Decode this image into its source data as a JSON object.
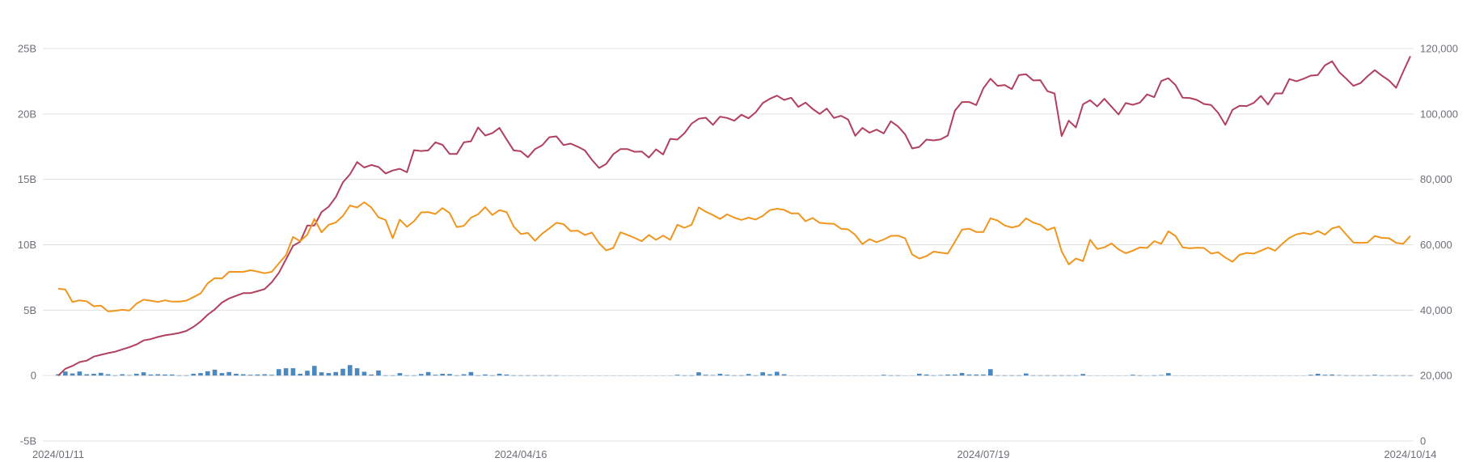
{
  "chart_data": {
    "type": "line+bar",
    "title": "",
    "xlabel": "",
    "ylabel_left": "",
    "ylabel_right": "",
    "grid": true,
    "legend": "none",
    "colors": {
      "line_red": "#b0405e",
      "line_orange": "#f0961e",
      "bars": "#4a88bd",
      "grid": "#e0e0e0",
      "tick_text": "#6e7079"
    },
    "y_left": {
      "range": [
        -5,
        25
      ],
      "unit": "B",
      "tick_labels": [
        "-5B",
        "0",
        "5B",
        "10B",
        "15B",
        "20B",
        "25B"
      ],
      "tick_values": [
        -5,
        0,
        5,
        10,
        15,
        20,
        25
      ]
    },
    "y_right": {
      "range": [
        0,
        120000
      ],
      "tick_labels": [
        "0",
        "20,000",
        "40,000",
        "60,000",
        "80,000",
        "100,000",
        "120,000"
      ],
      "tick_values": [
        0,
        20000,
        40000,
        60000,
        80000,
        100000,
        120000
      ]
    },
    "x_tick_labels": [
      "2024/01/11",
      "2024/04/16",
      "2024/07/19",
      "2024/10/14"
    ],
    "x": [
      "2024/01/11",
      "2024/01/12",
      "2024/01/16",
      "2024/01/17",
      "2024/01/18",
      "2024/01/19",
      "2024/01/22",
      "2024/01/23",
      "2024/01/24",
      "2024/01/25",
      "2024/01/26",
      "2024/01/29",
      "2024/01/30",
      "2024/01/31",
      "2024/02/01",
      "2024/02/02",
      "2024/02/05",
      "2024/02/06",
      "2024/02/07",
      "2024/02/08",
      "2024/02/09",
      "2024/02/12",
      "2024/02/13",
      "2024/02/14",
      "2024/02/15",
      "2024/02/16",
      "2024/02/20",
      "2024/02/21",
      "2024/02/22",
      "2024/02/23",
      "2024/02/26",
      "2024/02/27",
      "2024/02/28",
      "2024/02/29",
      "2024/03/01",
      "2024/03/04",
      "2024/03/05",
      "2024/03/06",
      "2024/03/07",
      "2024/03/08",
      "2024/03/11",
      "2024/03/12",
      "2024/03/13",
      "2024/03/14",
      "2024/03/15",
      "2024/03/18",
      "2024/03/19",
      "2024/03/20",
      "2024/03/21",
      "2024/03/22",
      "2024/03/25",
      "2024/03/26",
      "2024/03/27",
      "2024/03/28",
      "2024/04/01",
      "2024/04/02",
      "2024/04/03",
      "2024/04/04",
      "2024/04/05",
      "2024/04/08",
      "2024/04/09",
      "2024/04/10",
      "2024/04/11",
      "2024/04/12",
      "2024/04/15",
      "2024/04/16",
      "2024/04/17",
      "2024/04/18",
      "2024/04/19",
      "2024/04/22",
      "2024/04/23",
      "2024/04/24",
      "2024/04/25",
      "2024/04/26",
      "2024/04/29",
      "2024/04/30",
      "2024/05/01",
      "2024/05/02",
      "2024/05/03",
      "2024/05/06",
      "2024/05/07",
      "2024/05/08",
      "2024/05/09",
      "2024/05/10",
      "2024/05/13",
      "2024/05/14",
      "2024/05/15",
      "2024/05/16",
      "2024/05/17",
      "2024/05/20",
      "2024/05/21",
      "2024/05/22",
      "2024/05/23",
      "2024/05/24",
      "2024/05/28",
      "2024/05/29",
      "2024/05/30",
      "2024/05/31",
      "2024/06/03",
      "2024/06/04",
      "2024/06/05",
      "2024/06/06",
      "2024/06/07",
      "2024/06/10",
      "2024/06/11",
      "2024/06/12",
      "2024/06/13",
      "2024/06/14",
      "2024/06/17",
      "2024/06/18",
      "2024/06/20",
      "2024/06/21",
      "2024/06/24",
      "2024/06/25",
      "2024/06/26",
      "2024/06/27",
      "2024/06/28",
      "2024/07/01",
      "2024/07/02",
      "2024/07/03",
      "2024/07/05",
      "2024/07/08",
      "2024/07/09",
      "2024/07/10",
      "2024/07/11",
      "2024/07/12",
      "2024/07/15",
      "2024/07/16",
      "2024/07/17",
      "2024/07/18",
      "2024/07/19",
      "2024/07/22",
      "2024/07/23",
      "2024/07/24",
      "2024/07/25",
      "2024/07/26",
      "2024/07/29",
      "2024/07/30",
      "2024/07/31",
      "2024/08/01",
      "2024/08/02",
      "2024/08/05",
      "2024/08/06",
      "2024/08/07",
      "2024/08/08",
      "2024/08/09",
      "2024/08/12",
      "2024/08/13",
      "2024/08/14",
      "2024/08/15",
      "2024/08/16",
      "2024/08/19",
      "2024/08/20",
      "2024/08/21",
      "2024/08/22",
      "2024/08/23",
      "2024/08/26",
      "2024/08/27",
      "2024/08/28",
      "2024/08/29",
      "2024/08/30",
      "2024/09/03",
      "2024/09/04",
      "2024/09/05",
      "2024/09/06",
      "2024/09/09",
      "2024/09/10",
      "2024/09/11",
      "2024/09/12",
      "2024/09/13",
      "2024/09/16",
      "2024/09/17",
      "2024/09/18",
      "2024/09/19",
      "2024/09/20",
      "2024/09/23",
      "2024/09/24",
      "2024/09/25",
      "2024/09/26",
      "2024/09/27",
      "2024/09/30",
      "2024/10/01",
      "2024/10/02",
      "2024/10/03",
      "2024/10/04",
      "2024/10/07",
      "2024/10/08",
      "2024/10/09",
      "2024/10/10",
      "2024/10/11",
      "2024/10/14"
    ],
    "series": [
      {
        "type": "line",
        "axis": "left",
        "color": "#b0405e",
        "values": [
          0,
          0.52,
          0.74,
          1.03,
          1.14,
          1.45,
          1.59,
          1.72,
          1.82,
          2.0,
          2.17,
          2.38,
          2.69,
          2.79,
          2.95,
          3.08,
          3.16,
          3.26,
          3.41,
          3.72,
          4.13,
          4.65,
          5.06,
          5.58,
          5.89,
          6.1,
          6.3,
          6.3,
          6.45,
          6.61,
          7.13,
          7.85,
          8.88,
          9.92,
          10.23,
          11.47,
          11.47,
          12.5,
          12.91,
          13.64,
          14.77,
          15.39,
          16.32,
          15.91,
          16.1,
          15.95,
          15.45,
          15.68,
          15.81,
          15.54,
          17.23,
          17.17,
          17.21,
          17.83,
          17.64,
          16.94,
          16.94,
          17.83,
          17.91,
          18.97,
          18.35,
          18.53,
          18.93,
          18.06,
          17.21,
          17.15,
          16.69,
          17.31,
          17.6,
          18.22,
          18.29,
          17.62,
          17.73,
          17.5,
          17.21,
          16.49,
          15.87,
          16.18,
          16.92,
          17.31,
          17.31,
          17.11,
          17.13,
          16.67,
          17.29,
          16.9,
          18.1,
          18.04,
          18.53,
          19.26,
          19.63,
          19.71,
          19.17,
          19.79,
          19.69,
          19.48,
          19.94,
          19.67,
          20.12,
          20.83,
          21.16,
          21.4,
          21.07,
          21.24,
          20.54,
          20.87,
          20.39,
          20.0,
          20.41,
          19.69,
          19.86,
          19.57,
          18.33,
          18.93,
          18.57,
          18.8,
          18.51,
          19.44,
          19.05,
          18.45,
          17.36,
          17.48,
          18.04,
          17.98,
          18.06,
          18.35,
          20.25,
          20.91,
          20.91,
          20.68,
          21.96,
          22.69,
          22.15,
          22.21,
          21.9,
          22.98,
          23.04,
          22.56,
          22.58,
          21.74,
          21.57,
          18.31,
          19.48,
          18.97,
          20.74,
          21.05,
          20.58,
          21.16,
          20.56,
          19.96,
          20.83,
          20.7,
          20.87,
          21.49,
          21.28,
          22.52,
          22.73,
          22.21,
          21.24,
          21.22,
          21.07,
          20.76,
          20.68,
          20.08,
          19.17,
          20.31,
          20.62,
          20.6,
          20.85,
          21.38,
          20.72,
          21.57,
          21.57,
          22.67,
          22.5,
          22.69,
          22.93,
          22.98,
          23.72,
          24.03,
          23.2,
          22.69,
          22.15,
          22.36,
          22.89,
          23.35,
          22.93,
          22.56,
          22.0,
          23.24,
          24.42
        ]
      },
      {
        "type": "line",
        "axis": "right",
        "color": "#f0961e",
        "values": [
          46600,
          46300,
          42500,
          43000,
          42700,
          41200,
          41400,
          39600,
          39800,
          40100,
          39900,
          42000,
          43200,
          42900,
          42500,
          43000,
          42600,
          42600,
          42900,
          44000,
          45100,
          48200,
          49800,
          49700,
          51700,
          51700,
          51700,
          52200,
          51800,
          51300,
          51700,
          54300,
          56800,
          62400,
          61100,
          63100,
          67900,
          63800,
          66100,
          66800,
          68800,
          72000,
          71400,
          73000,
          71400,
          68400,
          67600,
          62000,
          67700,
          65500,
          67200,
          69900,
          70000,
          69400,
          71200,
          69700,
          65400,
          65800,
          68300,
          69300,
          71500,
          69100,
          70600,
          70000,
          65600,
          63300,
          63600,
          61200,
          63400,
          65000,
          66700,
          66300,
          64200,
          64300,
          63000,
          63700,
          60500,
          58300,
          59000,
          63800,
          63000,
          62100,
          61100,
          63000,
          61500,
          62800,
          61500,
          66100,
          65200,
          66100,
          71400,
          70100,
          69100,
          67900,
          69300,
          68300,
          67600,
          68300,
          67700,
          68800,
          70600,
          71000,
          70700,
          69600,
          69600,
          67200,
          68200,
          66700,
          66500,
          66400,
          64900,
          64700,
          63000,
          60200,
          61700,
          60800,
          61600,
          62700,
          62800,
          62000,
          57000,
          55800,
          56500,
          57900,
          57600,
          57300,
          60900,
          64600,
          64900,
          63900,
          63900,
          68100,
          67400,
          65900,
          65300,
          65800,
          68100,
          66800,
          66100,
          64500,
          65300,
          58000,
          54000,
          55800,
          55000,
          61500,
          58700,
          59200,
          60400,
          58600,
          57400,
          58200,
          59200,
          59000,
          61100,
          60300,
          64100,
          62700,
          59200,
          58900,
          59100,
          59000,
          57300,
          57700,
          56100,
          54800,
          56900,
          57500,
          57300,
          58200,
          59100,
          58200,
          60300,
          62100,
          63200,
          63600,
          63200,
          64200,
          63100,
          65000,
          65600,
          63100,
          60700,
          60600,
          60700,
          62700,
          62100,
          62000,
          60600,
          60300,
          62700
        ]
      },
      {
        "type": "bar",
        "axis": "left",
        "color": "#4a88bd",
        "values": [
          0.1,
          0.31,
          0.16,
          0.31,
          0.1,
          0.14,
          0.21,
          0.1,
          0.02,
          0.1,
          0.04,
          0.14,
          0.25,
          0.08,
          0.1,
          0.08,
          0.08,
          0.02,
          0.02,
          0.14,
          0.19,
          0.33,
          0.45,
          0.19,
          0.27,
          0.14,
          0.1,
          0.06,
          0.08,
          0.1,
          0.06,
          0.49,
          0.56,
          0.56,
          0.14,
          0.37,
          0.74,
          0.25,
          0.19,
          0.27,
          0.52,
          0.8,
          0.56,
          0.29,
          0.08,
          0.39,
          0.02,
          0.02,
          0.19,
          0.02,
          0.02,
          0.12,
          0.27,
          0.06,
          0.14,
          0.12,
          0.02,
          0.1,
          0.27,
          0.02,
          0.08,
          0.02,
          0.14,
          0.08,
          0.02,
          0.02,
          0.02,
          0.02,
          0.02,
          0.02,
          0.02,
          0.01,
          0.01,
          0.01,
          0.01,
          0.01,
          0.01,
          0.01,
          0.01,
          0.01,
          0.01,
          0.01,
          0.01,
          0.01,
          0.01,
          0.01,
          0.01,
          0.06,
          0.02,
          0.02,
          0.25,
          0.06,
          0.04,
          0.14,
          0.06,
          0.02,
          0.02,
          0.12,
          0.02,
          0.25,
          0.1,
          0.29,
          0.1,
          0.01,
          0.01,
          0.01,
          0.01,
          0.01,
          0.01,
          0.01,
          0.01,
          0.01,
          0.01,
          0.01,
          0.01,
          0.01,
          0.06,
          0.02,
          0.02,
          0.01,
          0.01,
          0.14,
          0.08,
          0.02,
          0.04,
          0.08,
          0.08,
          0.2,
          0.08,
          0.08,
          0.08,
          0.49,
          0.02,
          0.02,
          0.02,
          0.02,
          0.16,
          0.02,
          0.02,
          0.02,
          0.02,
          0.02,
          0.02,
          0.02,
          0.12,
          0.01,
          0.01,
          0.01,
          0.01,
          0.01,
          0.01,
          0.06,
          0.02,
          0.01,
          0.02,
          0.04,
          0.19,
          0.01,
          0.01,
          0.01,
          0.01,
          0.01,
          0.01,
          0.01,
          0.01,
          0.01,
          0.01,
          0.01,
          0.01,
          0.01,
          0.01,
          0.01,
          0.01,
          0.01,
          0.01,
          0.01,
          0.06,
          0.14,
          0.06,
          0.08,
          0.04,
          0.02,
          0.02,
          0.02,
          0.02,
          0.06,
          0.02,
          0.02,
          0.02,
          0.02,
          0.02
        ]
      }
    ]
  }
}
